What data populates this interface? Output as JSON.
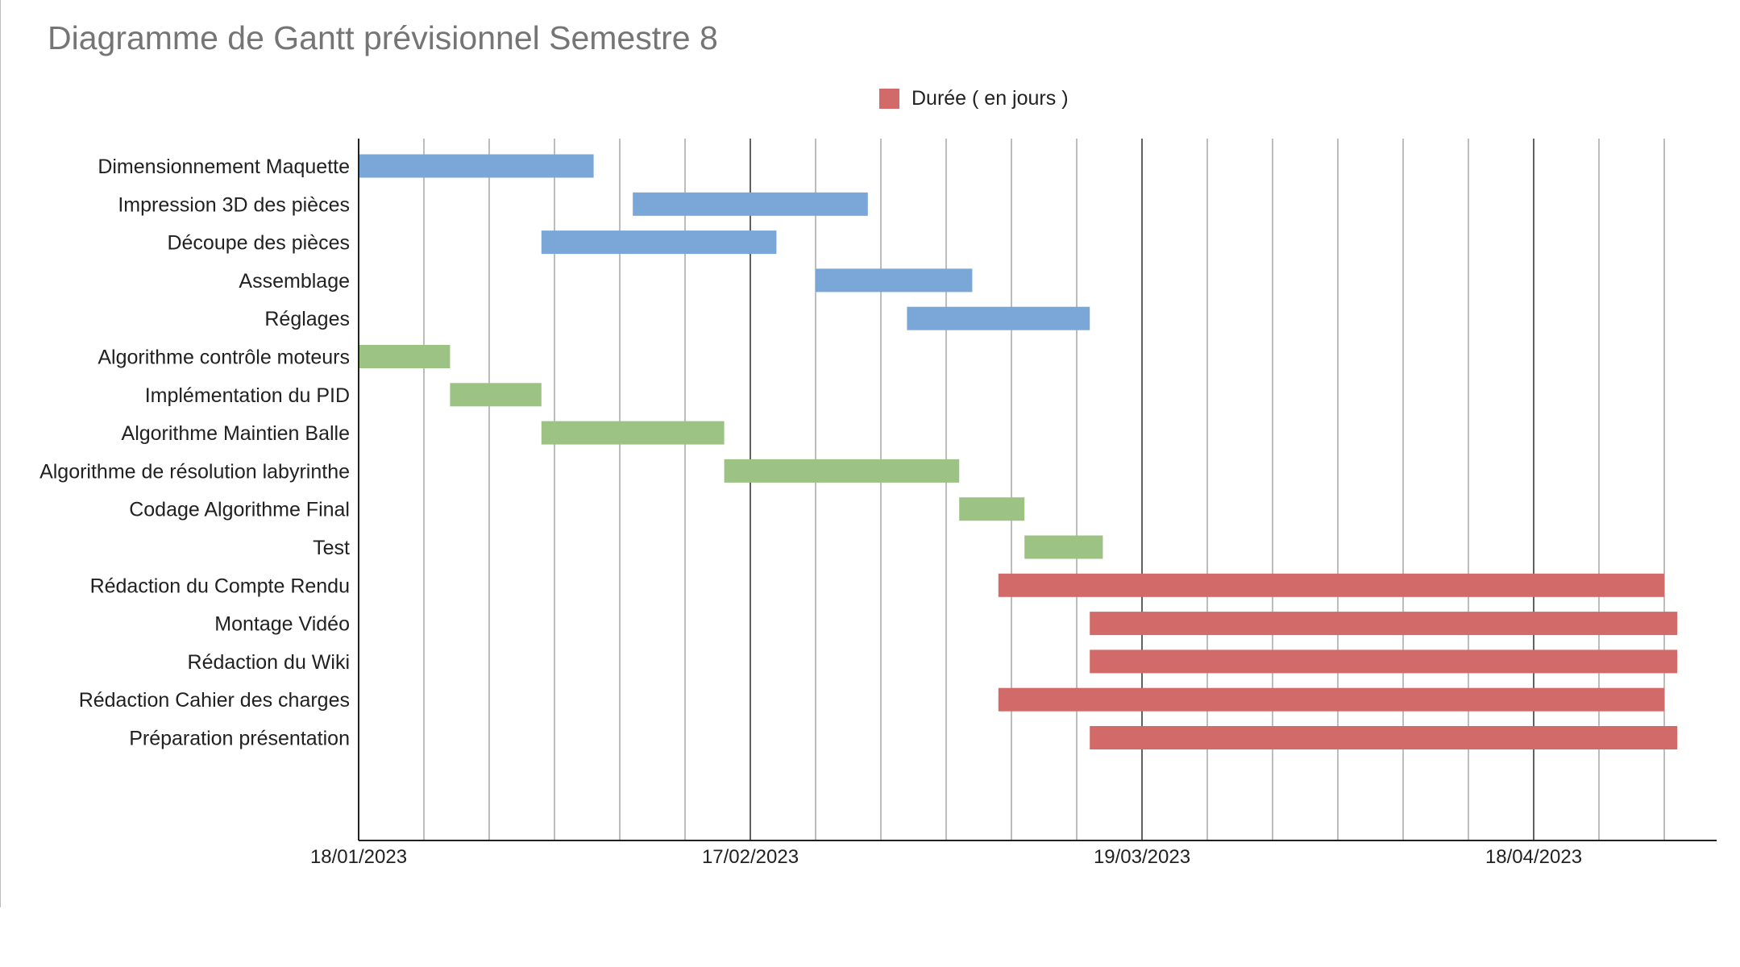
{
  "chart_data": {
    "type": "bar",
    "subtype": "gantt",
    "title": "Diagramme de Gantt prévisionnel Semestre 8",
    "legend": {
      "position": "top-center",
      "entries": [
        {
          "label": "Durée ( en jours )",
          "color": "#d16a68"
        }
      ]
    },
    "x_axis": {
      "type": "date",
      "range": [
        "2023-01-18",
        "2023-05-02"
      ],
      "ticks": [
        {
          "date": "2023-01-18",
          "label": "18/01/2023"
        },
        {
          "date": "2023-02-17",
          "label": "17/02/2023"
        },
        {
          "date": "2023-03-19",
          "label": "19/03/2023"
        },
        {
          "date": "2023-04-18",
          "label": "18/04/2023"
        }
      ],
      "grid": true,
      "minor_grid_every_days": 5
    },
    "tasks": [
      {
        "label": "Dimensionnement Maquette",
        "start": "2023-01-18",
        "end": "2023-02-05",
        "color": "#7ba7d8"
      },
      {
        "label": "Impression 3D des pièces",
        "start": "2023-02-08",
        "end": "2023-02-26",
        "color": "#7ba7d8"
      },
      {
        "label": "Découpe des pièces",
        "start": "2023-02-01",
        "end": "2023-02-19",
        "color": "#7ba7d8"
      },
      {
        "label": "Assemblage",
        "start": "2023-02-22",
        "end": "2023-03-06",
        "color": "#7ba7d8"
      },
      {
        "label": "Réglages",
        "start": "2023-03-01",
        "end": "2023-03-15",
        "color": "#7ba7d8"
      },
      {
        "label": "Algorithme contrôle moteurs",
        "start": "2023-01-18",
        "end": "2023-01-25",
        "color": "#9dc384"
      },
      {
        "label": "Implémentation du PID",
        "start": "2023-01-25",
        "end": "2023-02-01",
        "color": "#9dc384"
      },
      {
        "label": "Algorithme Maintien Balle",
        "start": "2023-02-01",
        "end": "2023-02-15",
        "color": "#9dc384"
      },
      {
        "label": "Algorithme de résolution labyrinthe",
        "start": "2023-02-15",
        "end": "2023-03-05",
        "color": "#9dc384"
      },
      {
        "label": "Codage Algorithme Final",
        "start": "2023-03-05",
        "end": "2023-03-10",
        "color": "#9dc384"
      },
      {
        "label": "Test",
        "start": "2023-03-10",
        "end": "2023-03-16",
        "color": "#9dc384"
      },
      {
        "label": "Rédaction du Compte Rendu",
        "start": "2023-03-08",
        "end": "2023-04-28",
        "color": "#d16a68"
      },
      {
        "label": "Montage Vidéo",
        "start": "2023-03-15",
        "end": "2023-04-29",
        "color": "#d16a68"
      },
      {
        "label": "Rédaction du Wiki",
        "start": "2023-03-15",
        "end": "2023-04-29",
        "color": "#d16a68"
      },
      {
        "label": "Rédaction Cahier des charges",
        "start": "2023-03-08",
        "end": "2023-04-28",
        "color": "#d16a68"
      },
      {
        "label": "Préparation présentation",
        "start": "2023-03-15",
        "end": "2023-04-29",
        "color": "#d16a68"
      }
    ]
  }
}
